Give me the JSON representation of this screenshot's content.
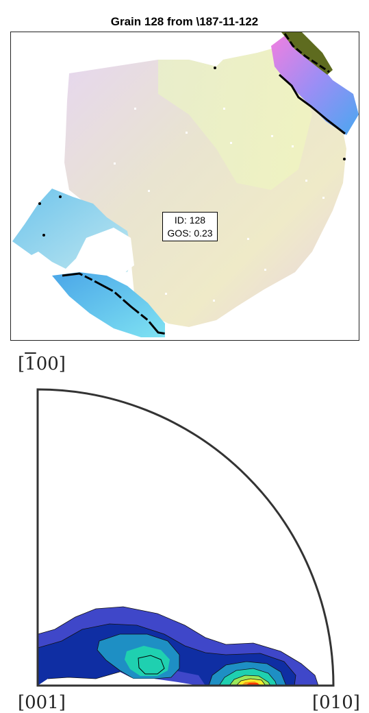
{
  "map": {
    "title": "Grain 128 from \\187-11-122",
    "id_label": "ID: 128",
    "gos_label": "GOS: 0.23"
  },
  "pole_figure": {
    "label_top": "[̄100]",
    "label_top_display": "[1̄ 00]",
    "label_bottom_left": "[001]",
    "label_bottom_right": "[010]"
  },
  "colors": {
    "contour_levels": [
      "#3f47c9",
      "#0f2ea3",
      "#1e8fc4",
      "#1fd0b0",
      "#9be85a",
      "#f5ee2a",
      "#f59b1a",
      "#ff3d00"
    ]
  }
}
